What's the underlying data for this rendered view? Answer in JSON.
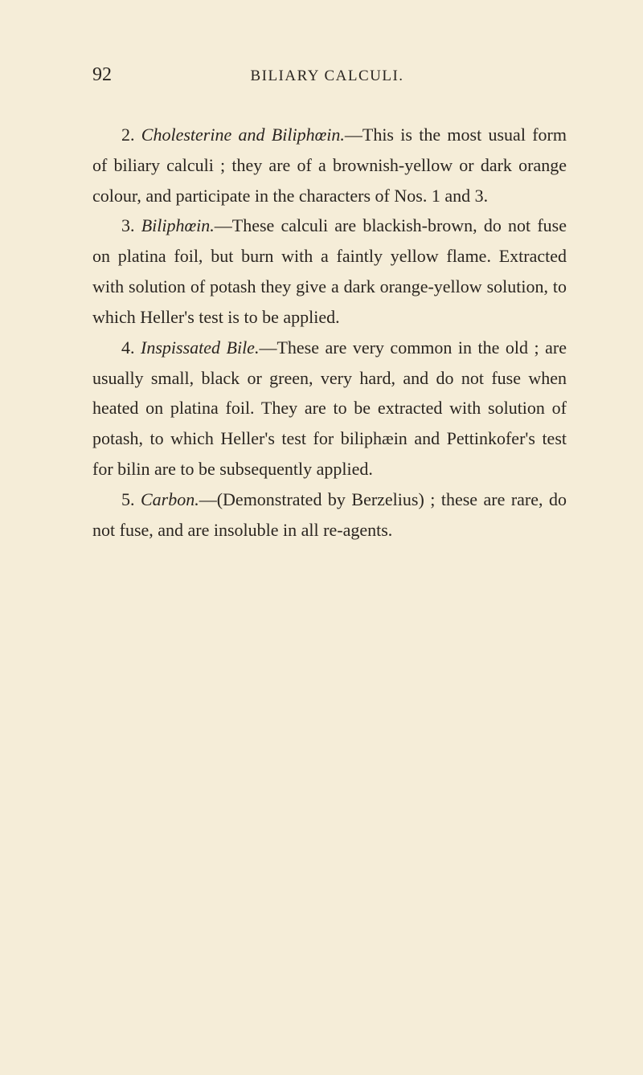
{
  "page": {
    "number": "92",
    "running_title": "BILIARY CALCULI.",
    "background_color": "#f5edd8",
    "text_color": "#2a2520"
  },
  "paragraphs": {
    "p2": {
      "num": "2. ",
      "title": "Cholesterine and Biliphœin.",
      "body": "—This is the most usual form of biliary calculi ; they are of a brownish-yellow or dark orange colour, and participate in the characters of Nos. 1 and 3."
    },
    "p3": {
      "num": "3. ",
      "title": "Biliphœin.",
      "body": "—These calculi are blackish-brown, do not fuse on platina foil, but burn with a faintly yellow flame. Extracted with solution of potash they give a dark orange-yellow solution, to which Heller's test is to be applied."
    },
    "p4": {
      "num": "4. ",
      "title": "Inspissated Bile.",
      "body": "—These are very common in the old ; are usually small, black or green, very hard, and do not fuse when heated on platina foil. They are to be extracted with solution of potash, to which Heller's test for biliphæin and Pettinkofer's test for bilin are to be subsequently applied."
    },
    "p5": {
      "num": "5. ",
      "title": "Carbon.",
      "body": "—(Demonstrated by Berzelius) ; these are rare, do not fuse, and are insoluble in all re-agents."
    }
  }
}
